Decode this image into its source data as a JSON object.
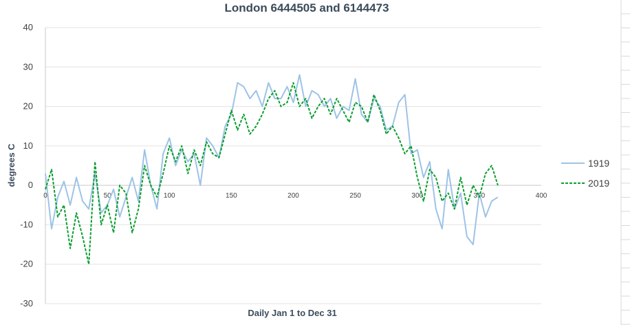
{
  "chart_data": {
    "type": "line",
    "title": "London 6444505 and 6144473",
    "xlabel": "Daily Jan 1 to Dec 31",
    "ylabel": "degrees C",
    "xlim": [
      0,
      400
    ],
    "ylim": [
      -30,
      40
    ],
    "x_ticks": [
      "0",
      "50",
      "100",
      "150",
      "200",
      "250",
      "300",
      "350",
      "400"
    ],
    "y_ticks": [
      "40",
      "30",
      "20",
      "10",
      "0",
      "-10",
      "-20",
      "-30"
    ],
    "grid": true,
    "legend_position": "right",
    "series": [
      {
        "name": "1919",
        "color": "#9dc3e6",
        "style": "solid",
        "x": [
          0,
          5,
          10,
          15,
          20,
          25,
          30,
          35,
          40,
          45,
          50,
          55,
          60,
          65,
          70,
          75,
          80,
          85,
          90,
          95,
          100,
          105,
          110,
          115,
          120,
          125,
          130,
          135,
          140,
          145,
          150,
          155,
          160,
          165,
          170,
          175,
          180,
          185,
          190,
          195,
          200,
          205,
          210,
          215,
          220,
          225,
          230,
          235,
          240,
          245,
          250,
          255,
          260,
          265,
          270,
          275,
          280,
          285,
          290,
          295,
          300,
          305,
          310,
          315,
          320,
          325,
          330,
          335,
          340,
          345,
          350,
          355,
          360,
          365
        ],
        "y": [
          3,
          -11,
          -3,
          1,
          -5,
          2,
          -4,
          -6,
          3,
          -7,
          -5,
          -1,
          -8,
          -3,
          2,
          -4,
          9,
          0,
          -6,
          8,
          12,
          5,
          9,
          6,
          8,
          0,
          12,
          10,
          7,
          15,
          18,
          26,
          25,
          22,
          24,
          20,
          26,
          22,
          22,
          25,
          21,
          28,
          20,
          24,
          23,
          20,
          22,
          17,
          20,
          19,
          27,
          18,
          16,
          22,
          20,
          14,
          15,
          21,
          23,
          8,
          9,
          2,
          6,
          -6,
          -11,
          4,
          -6,
          -2,
          -13,
          -15,
          -2,
          -8,
          -4,
          -3
        ]
      },
      {
        "name": "2019",
        "color": "#0a9e2e",
        "style": "dashed",
        "x": [
          0,
          5,
          10,
          15,
          20,
          25,
          30,
          35,
          40,
          45,
          50,
          55,
          60,
          65,
          70,
          75,
          80,
          85,
          90,
          95,
          100,
          105,
          110,
          115,
          120,
          125,
          130,
          135,
          140,
          145,
          150,
          155,
          160,
          165,
          170,
          175,
          180,
          185,
          190,
          195,
          200,
          205,
          210,
          215,
          220,
          225,
          230,
          235,
          240,
          245,
          250,
          255,
          260,
          265,
          270,
          275,
          280,
          285,
          290,
          295,
          300,
          305,
          310,
          315,
          320,
          325,
          330,
          335,
          340,
          345,
          350,
          355,
          360,
          365
        ],
        "y": [
          -1,
          4,
          -8,
          -5,
          -16,
          -7,
          -13,
          -20,
          6,
          -10,
          -5,
          -12,
          0,
          -2,
          -12,
          -6,
          5,
          0,
          -3,
          3,
          10,
          6,
          10,
          3,
          9,
          5,
          11,
          8,
          7,
          13,
          19,
          14,
          18,
          13,
          15,
          18,
          22,
          24,
          20,
          21,
          26,
          20,
          22,
          17,
          20,
          22,
          18,
          22,
          19,
          16,
          21,
          20,
          16,
          23,
          19,
          13,
          15,
          12,
          8,
          10,
          2,
          -4,
          4,
          2,
          -4,
          -2,
          -6,
          2,
          -5,
          0,
          -3,
          3,
          5,
          0
        ]
      }
    ]
  }
}
